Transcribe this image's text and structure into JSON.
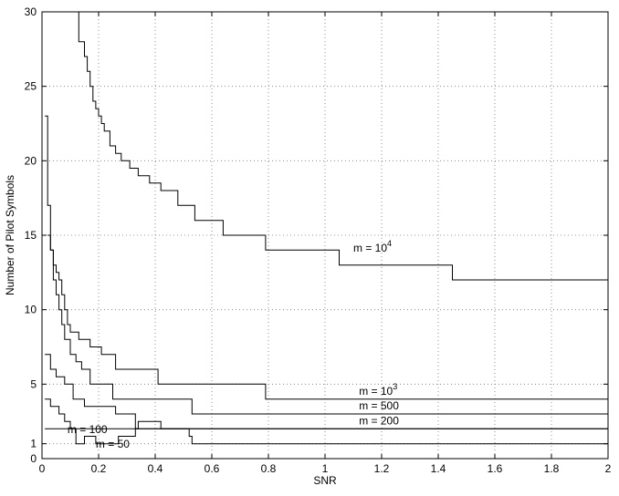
{
  "chart_data": {
    "type": "line",
    "title": "",
    "xlabel": "SNR",
    "ylabel": "Number of Pilot Symbols",
    "xlim": [
      0,
      2
    ],
    "ylim": [
      0,
      30
    ],
    "grid": true,
    "xticks": [
      "0",
      "0.2",
      "0.4",
      "0.6",
      "0.8",
      "1",
      "1.2",
      "1.4",
      "1.6",
      "1.8",
      "2"
    ],
    "yticks": [
      "0",
      "1",
      "5",
      "10",
      "15",
      "20",
      "25",
      "30"
    ],
    "series": [
      {
        "name": "m = 10^4",
        "label_base": "m = 10",
        "label_exp": "4",
        "label_pos": [
          1.1,
          13.9
        ],
        "x": [
          0.11,
          0.13,
          0.15,
          0.16,
          0.17,
          0.18,
          0.19,
          0.2,
          0.21,
          0.22,
          0.24,
          0.26,
          0.28,
          0.31,
          0.34,
          0.38,
          0.42,
          0.48,
          0.54,
          0.64,
          0.79,
          1.05,
          1.45,
          2.0
        ],
        "y": [
          30,
          28,
          27,
          26,
          25,
          24,
          23.5,
          23,
          22.5,
          22,
          21,
          20.5,
          20,
          19.5,
          19,
          18.5,
          18,
          17,
          16,
          15,
          14,
          13,
          12,
          12
        ]
      },
      {
        "name": "m = 10^3",
        "label_base": "m = 10",
        "label_exp": "3",
        "label_pos": [
          1.12,
          4.3
        ],
        "x": [
          0.02,
          0.03,
          0.04,
          0.05,
          0.06,
          0.07,
          0.08,
          0.09,
          0.1,
          0.13,
          0.17,
          0.21,
          0.26,
          0.41,
          0.79,
          2.0
        ],
        "y": [
          15,
          14,
          13,
          12.5,
          12,
          11,
          10,
          9,
          8.5,
          8,
          7.5,
          7,
          6,
          5,
          4,
          4
        ]
      },
      {
        "name": "m = 500",
        "label_base": "m = 500",
        "label_exp": "",
        "label_pos": [
          1.12,
          3.3
        ],
        "x": [
          0.01,
          0.02,
          0.03,
          0.04,
          0.05,
          0.06,
          0.07,
          0.08,
          0.1,
          0.12,
          0.14,
          0.17,
          0.25,
          0.53,
          2.0
        ],
        "y": [
          23,
          17,
          14,
          12,
          11,
          10,
          9,
          8,
          7,
          6.5,
          6,
          5,
          4,
          3,
          3
        ]
      },
      {
        "name": "m = 200",
        "label_base": "m = 200",
        "label_exp": "",
        "label_pos": [
          1.12,
          2.3
        ],
        "x": [
          0.01,
          0.03,
          0.05,
          0.08,
          0.11,
          0.15,
          0.26,
          0.33,
          2.0
        ],
        "y": [
          7,
          6,
          5.5,
          5,
          4,
          3.5,
          3,
          2,
          2
        ]
      },
      {
        "name": "m = 100",
        "label_base": "m = 100",
        "label_exp": "",
        "label_pos": [
          0.09,
          1.7
        ],
        "x": [
          0.01,
          2.0
        ],
        "y": [
          2,
          2
        ]
      },
      {
        "name": "m = 50",
        "label_base": "m = 50",
        "label_exp": "",
        "label_pos": [
          0.19,
          0.75
        ],
        "x": [
          0.01,
          0.03,
          0.06,
          0.08,
          0.1,
          0.12,
          0.15,
          0.19,
          0.27,
          0.33,
          0.34,
          0.42,
          0.52,
          0.53,
          2.0
        ],
        "y": [
          4,
          3.5,
          3,
          2.5,
          2,
          1,
          1.5,
          1,
          1.5,
          2,
          2.5,
          2,
          1.5,
          1,
          1
        ]
      }
    ]
  }
}
